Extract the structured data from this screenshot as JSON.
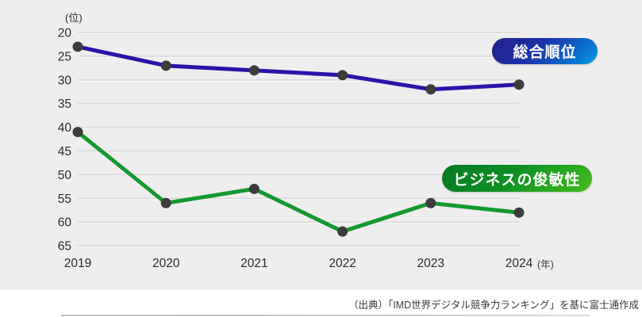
{
  "page": {
    "background_color": "#ffffff",
    "chart_background_color": "#eeeeee"
  },
  "chart_data": {
    "type": "line",
    "x": [
      "2019",
      "2020",
      "2021",
      "2022",
      "2023",
      "2024"
    ],
    "x_unit": "(年)",
    "y_unit": "(位)",
    "yticks": [
      20,
      25,
      30,
      35,
      40,
      45,
      50,
      55,
      60,
      65
    ],
    "ylim": [
      20,
      65
    ],
    "y_inverted": true,
    "grid": true,
    "gridline_color": "#dcdcdc",
    "gridline_highlight_color": "#f7f7f7",
    "tick_label_color": "#2b2b2b",
    "marker_color": "#3c3c3c",
    "series": [
      {
        "name": "総合順位",
        "values": [
          23,
          27,
          28,
          29,
          32,
          31
        ],
        "color": "#2815a8",
        "pill_gradient": [
          "#23228a",
          "#089fde"
        ]
      },
      {
        "name": "ビジネスの俊敏性",
        "values": [
          41,
          56,
          53,
          62,
          56,
          58
        ],
        "color": "#13992e",
        "pill_gradient": [
          "#067a20",
          "#4abd1f"
        ]
      }
    ],
    "legend_position": "inline-pills-right",
    "title": "",
    "xlabel": "",
    "ylabel": ""
  },
  "footer": {
    "source": "（出典）「IMD世界デジタル競争力ランキング」を基に富士通作成"
  }
}
